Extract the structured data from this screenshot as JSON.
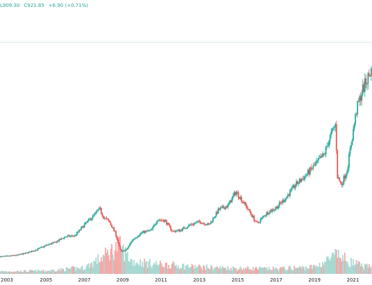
{
  "legend": {
    "low": "L909.30",
    "close": "C921.85",
    "change": "+6.90 (+0.71%)",
    "color": "#26a69a"
  },
  "colors": {
    "up": "#26a69a",
    "down": "#ef5350",
    "up_volume": "#a8d8d2",
    "down_volume": "#f4a9a7",
    "price_line": "#c9e9e5",
    "background": "#ffffff",
    "axis_text": "#131722"
  },
  "chart_data": {
    "type": "candlestick",
    "interval": "weekly",
    "x_ticks": [
      "2003",
      "2005",
      "2007",
      "2009",
      "2011",
      "2013",
      "2015",
      "2017",
      "2019",
      "2021"
    ],
    "x_range": [
      2002.6,
      2022.0
    ],
    "y_range": [
      0,
      1000
    ],
    "last_close": 921.85,
    "price_path": [
      [
        2002.6,
        48
      ],
      [
        2003.0,
        50
      ],
      [
        2003.5,
        55
      ],
      [
        2004.0,
        65
      ],
      [
        2004.5,
        80
      ],
      [
        2005.0,
        100
      ],
      [
        2005.5,
        115
      ],
      [
        2006.0,
        140
      ],
      [
        2006.5,
        145
      ],
      [
        2007.0,
        195
      ],
      [
        2007.5,
        240
      ],
      [
        2007.8,
        270
      ],
      [
        2008.0,
        230
      ],
      [
        2008.3,
        210
      ],
      [
        2008.6,
        160
      ],
      [
        2008.9,
        70
      ],
      [
        2009.2,
        80
      ],
      [
        2009.5,
        125
      ],
      [
        2010.0,
        160
      ],
      [
        2010.5,
        170
      ],
      [
        2010.8,
        220
      ],
      [
        2011.2,
        215
      ],
      [
        2011.6,
        165
      ],
      [
        2012.0,
        170
      ],
      [
        2012.5,
        195
      ],
      [
        2013.0,
        210
      ],
      [
        2013.5,
        195
      ],
      [
        2014.0,
        265
      ],
      [
        2014.5,
        285
      ],
      [
        2014.9,
        350
      ],
      [
        2015.3,
        300
      ],
      [
        2015.8,
        230
      ],
      [
        2016.0,
        200
      ],
      [
        2016.5,
        250
      ],
      [
        2017.0,
        275
      ],
      [
        2017.5,
        320
      ],
      [
        2018.0,
        380
      ],
      [
        2018.5,
        420
      ],
      [
        2019.0,
        470
      ],
      [
        2019.5,
        520
      ],
      [
        2019.8,
        600
      ],
      [
        2020.1,
        660
      ],
      [
        2020.2,
        420
      ],
      [
        2020.4,
        380
      ],
      [
        2020.7,
        450
      ],
      [
        2021.0,
        620
      ],
      [
        2021.2,
        730
      ],
      [
        2021.5,
        820
      ],
      [
        2021.8,
        880
      ],
      [
        2022.0,
        921.85
      ]
    ],
    "volume_profile": [
      [
        2002.6,
        8
      ],
      [
        2005.0,
        10
      ],
      [
        2007.0,
        20
      ],
      [
        2008.0,
        55
      ],
      [
        2008.8,
        90
      ],
      [
        2009.5,
        40
      ],
      [
        2011.0,
        30
      ],
      [
        2013.0,
        22
      ],
      [
        2015.0,
        18
      ],
      [
        2017.0,
        16
      ],
      [
        2019.0,
        22
      ],
      [
        2020.2,
        60
      ],
      [
        2020.8,
        40
      ],
      [
        2021.5,
        25
      ],
      [
        2022.0,
        20
      ]
    ]
  }
}
